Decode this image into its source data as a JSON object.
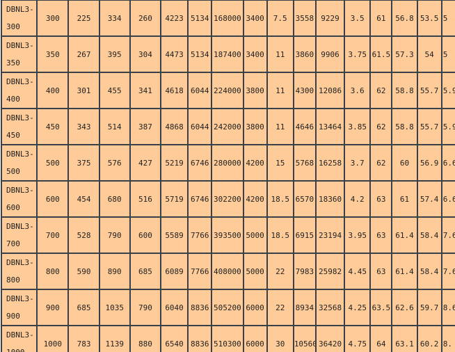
{
  "table": {
    "rows": [
      {
        "model": "DBNL3-",
        "size": "300",
        "cells": [
          "300",
          "225",
          "334",
          "260",
          "4223",
          "5134",
          "168000",
          "3400",
          "7.5",
          "3558",
          "9229",
          "3.5",
          "61",
          "56.8",
          "53.5",
          "5"
        ]
      },
      {
        "model": "DBNL3-",
        "size": "350",
        "cells": [
          "350",
          "267",
          "395",
          "304",
          "4473",
          "5134",
          "187400",
          "3400",
          "11",
          "3860",
          "9906",
          "3.75",
          "61.5",
          "57.3",
          "54",
          "5"
        ]
      },
      {
        "model": "DBNL3-",
        "size": "400",
        "cells": [
          "400",
          "301",
          "455",
          "341",
          "4618",
          "6044",
          "224000",
          "3800",
          "11",
          "4300",
          "12086",
          "3.6",
          "62",
          "58.8",
          "55.7",
          "5.9"
        ]
      },
      {
        "model": "DBNL3-",
        "size": "450",
        "cells": [
          "450",
          "343",
          "514",
          "387",
          "4868",
          "6044",
          "242000",
          "3800",
          "11",
          "4646",
          "13464",
          "3.85",
          "62",
          "58.8",
          "55.7",
          "5.9"
        ]
      },
      {
        "model": "DBNL3-",
        "size": "500",
        "cells": [
          "500",
          "375",
          "576",
          "427",
          "5219",
          "6746",
          "280000",
          "4200",
          "15",
          "5768",
          "16258",
          "3.7",
          "62",
          "60",
          "56.9",
          "6.6"
        ]
      },
      {
        "model": "DBNL3-",
        "size": "600",
        "cells": [
          "600",
          "454",
          "680",
          "516",
          "5719",
          "6746",
          "302200",
          "4200",
          "18.5",
          "6570",
          "18360",
          "4.2",
          "63",
          "61",
          "57.4",
          "6.6"
        ]
      },
      {
        "model": "DBNL3-",
        "size": "700",
        "cells": [
          "700",
          "528",
          "790",
          "600",
          "5589",
          "7766",
          "393500",
          "5000",
          "18.5",
          "6915",
          "23194",
          "3.95",
          "63",
          "61.4",
          "58.4",
          "7.6"
        ]
      },
      {
        "model": "DBNL3-",
        "size": "800",
        "cells": [
          "800",
          "590",
          "890",
          "685",
          "6089",
          "7766",
          "408000",
          "5000",
          "22",
          "7983",
          "25982",
          "4.45",
          "63",
          "61.4",
          "58.4",
          "7.6"
        ]
      },
      {
        "model": "DBNL3-",
        "size": "900",
        "cells": [
          "900",
          "685",
          "1035",
          "790",
          "6040",
          "8836",
          "505200",
          "6000",
          "22",
          "8934",
          "32568",
          "4.25",
          "63.5",
          "62.6",
          "59.7",
          "8.6"
        ]
      },
      {
        "model": "DBNL3-",
        "size": "1000",
        "cells": [
          "1000",
          "783",
          "1139",
          "880",
          "6540",
          "8836",
          "510300",
          "6000",
          "30",
          "10560",
          "36420",
          "4.75",
          "64",
          "63.1",
          "60.2",
          "8."
        ]
      }
    ]
  },
  "colors": {
    "cell_bg": "#ffcc99",
    "grid": "#3a4048"
  }
}
